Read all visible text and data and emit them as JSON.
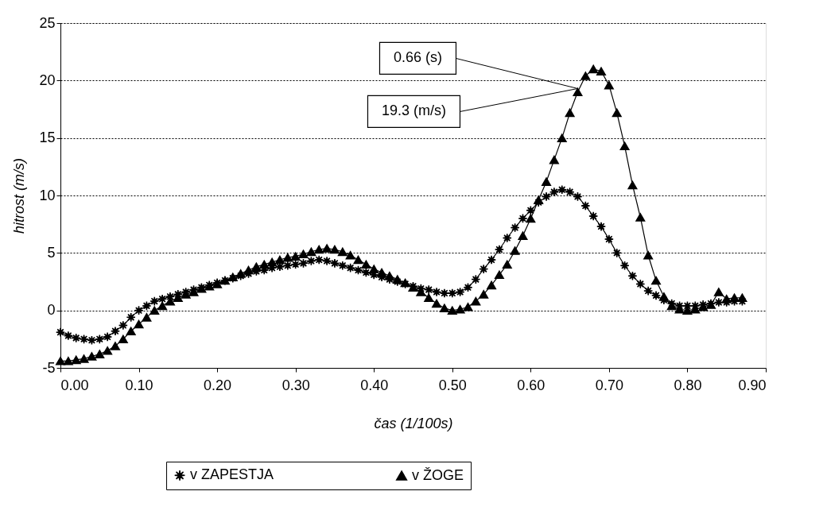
{
  "chart_data": {
    "type": "line",
    "xlabel": "čas (1/100s)",
    "ylabel": "hitrost (m/s)",
    "x": [
      0.0,
      0.01,
      0.02,
      0.03,
      0.04,
      0.05,
      0.06,
      0.07,
      0.08,
      0.09,
      0.1,
      0.11,
      0.12,
      0.13,
      0.14,
      0.15,
      0.16,
      0.17,
      0.18,
      0.19,
      0.2,
      0.21,
      0.22,
      0.23,
      0.24,
      0.25,
      0.26,
      0.27,
      0.28,
      0.29,
      0.3,
      0.31,
      0.32,
      0.33,
      0.34,
      0.35,
      0.36,
      0.37,
      0.38,
      0.39,
      0.4,
      0.41,
      0.42,
      0.43,
      0.44,
      0.45,
      0.46,
      0.47,
      0.48,
      0.49,
      0.5,
      0.51,
      0.52,
      0.53,
      0.54,
      0.55,
      0.56,
      0.57,
      0.58,
      0.59,
      0.6,
      0.61,
      0.62,
      0.63,
      0.64,
      0.65,
      0.66,
      0.67,
      0.68,
      0.69,
      0.7,
      0.71,
      0.72,
      0.73,
      0.74,
      0.75,
      0.76,
      0.77,
      0.78,
      0.79,
      0.8,
      0.81,
      0.82,
      0.83,
      0.84,
      0.85,
      0.86,
      0.87
    ],
    "series": [
      {
        "name": "v ZAPESTJA",
        "color": "#000000",
        "marker": "star",
        "values": [
          -1.9,
          -2.2,
          -2.4,
          -2.5,
          -2.6,
          -2.5,
          -2.3,
          -1.8,
          -1.3,
          -0.6,
          0.0,
          0.4,
          0.8,
          1.0,
          1.2,
          1.4,
          1.6,
          1.8,
          2.0,
          2.2,
          2.4,
          2.6,
          2.8,
          3.0,
          3.2,
          3.4,
          3.5,
          3.7,
          3.8,
          3.9,
          4.0,
          4.1,
          4.3,
          4.4,
          4.3,
          4.1,
          3.9,
          3.7,
          3.5,
          3.3,
          3.1,
          2.9,
          2.7,
          2.5,
          2.3,
          2.1,
          1.9,
          1.8,
          1.6,
          1.5,
          1.5,
          1.6,
          2.0,
          2.7,
          3.6,
          4.4,
          5.3,
          6.3,
          7.2,
          8.0,
          8.7,
          9.4,
          9.9,
          10.3,
          10.5,
          10.3,
          9.9,
          9.1,
          8.2,
          7.3,
          6.2,
          5.0,
          3.9,
          3.0,
          2.3,
          1.7,
          1.3,
          0.9,
          0.6,
          0.4,
          0.4,
          0.4,
          0.5,
          0.6,
          0.7,
          0.7,
          0.8,
          0.8
        ]
      },
      {
        "name": "v ŽOGE",
        "color": "#000000",
        "marker": "triangle",
        "values": [
          -4.4,
          -4.4,
          -4.3,
          -4.2,
          -4.0,
          -3.8,
          -3.5,
          -3.1,
          -2.5,
          -1.8,
          -1.2,
          -0.6,
          0.0,
          0.4,
          0.8,
          1.1,
          1.4,
          1.6,
          1.9,
          2.1,
          2.3,
          2.6,
          2.9,
          3.2,
          3.5,
          3.8,
          4.0,
          4.2,
          4.4,
          4.6,
          4.7,
          4.9,
          5.1,
          5.3,
          5.4,
          5.3,
          5.1,
          4.8,
          4.4,
          4.0,
          3.6,
          3.3,
          3.0,
          2.7,
          2.4,
          2.0,
          1.6,
          1.1,
          0.6,
          0.2,
          0.0,
          0.1,
          0.3,
          0.8,
          1.4,
          2.2,
          3.1,
          4.0,
          5.2,
          6.5,
          8.0,
          9.6,
          11.2,
          13.1,
          15.0,
          17.2,
          19.0,
          20.4,
          21.0,
          20.8,
          19.6,
          17.2,
          14.3,
          10.9,
          8.1,
          4.8,
          2.6,
          1.2,
          0.4,
          0.1,
          0.0,
          0.1,
          0.3,
          0.5,
          1.6,
          1.0,
          1.1,
          1.1
        ]
      }
    ],
    "xlim": [
      0,
      0.9
    ],
    "ylim": [
      -5,
      25
    ],
    "xticks": [
      {
        "value": 0,
        "label": "0.00"
      },
      {
        "value": 0.1,
        "label": "0.10"
      },
      {
        "value": 0.2,
        "label": "0.20"
      },
      {
        "value": 0.3,
        "label": "0.30"
      },
      {
        "value": 0.4,
        "label": "0.40"
      },
      {
        "value": 0.5,
        "label": "0.50"
      },
      {
        "value": 0.6,
        "label": "0.60"
      },
      {
        "value": 0.7,
        "label": "0.70"
      },
      {
        "value": 0.8,
        "label": "0.80"
      },
      {
        "value": 0.9,
        "label": "0.90"
      }
    ],
    "yticks": [
      -5,
      0,
      5,
      10,
      15,
      20,
      25
    ],
    "grid": "y",
    "legend": "bottom",
    "line_style": "solid",
    "annotations": [
      {
        "text": "0.66 (s)",
        "x": 0.66,
        "y": 19.3
      },
      {
        "text": "19.3 (m/s)",
        "x": 0.66,
        "y": 19.3
      }
    ]
  }
}
